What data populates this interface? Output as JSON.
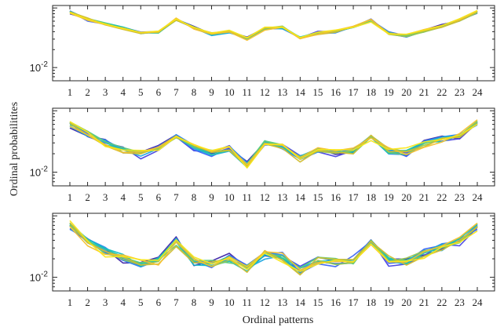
{
  "chart_data": {
    "type": "line",
    "xlabel": "Ordinal patterns",
    "ylabel": "Ordinal probabilitites",
    "x": [
      1,
      2,
      3,
      4,
      5,
      6,
      7,
      8,
      9,
      10,
      11,
      12,
      13,
      14,
      15,
      16,
      17,
      18,
      19,
      20,
      21,
      22,
      23,
      24
    ],
    "yscale": "log",
    "ytick_label": "10^-2",
    "ylim": [
      0.006,
      0.11
    ],
    "grid": false,
    "panels": [
      {
        "series_base": [
          0.085,
          0.064,
          0.054,
          0.046,
          0.038,
          0.039,
          0.065,
          0.047,
          0.036,
          0.04,
          0.031,
          0.045,
          0.047,
          0.032,
          0.038,
          0.04,
          0.047,
          0.062,
          0.038,
          0.034,
          0.041,
          0.05,
          0.063,
          0.086
        ],
        "spread": 0.06,
        "n_series": 12
      },
      {
        "series_base": [
          0.06,
          0.043,
          0.03,
          0.023,
          0.02,
          0.025,
          0.037,
          0.026,
          0.021,
          0.024,
          0.013,
          0.031,
          0.026,
          0.017,
          0.023,
          0.021,
          0.022,
          0.04,
          0.022,
          0.021,
          0.029,
          0.034,
          0.038,
          0.063
        ],
        "spread": 0.14,
        "n_series": 12
      },
      {
        "series_base": [
          0.07,
          0.04,
          0.028,
          0.022,
          0.016,
          0.019,
          0.038,
          0.018,
          0.017,
          0.02,
          0.014,
          0.023,
          0.022,
          0.013,
          0.019,
          0.018,
          0.019,
          0.038,
          0.019,
          0.018,
          0.025,
          0.031,
          0.04,
          0.07
        ],
        "spread": 0.18,
        "n_series": 12
      }
    ],
    "colors": [
      "#3e26a8",
      "#4743e2",
      "#3c66f5",
      "#2b88f0",
      "#1ea7e0",
      "#10bec6",
      "#27c7a3",
      "#5fcc79",
      "#9bc94e",
      "#d1bd30",
      "#f5c12e",
      "#f9e619"
    ]
  }
}
